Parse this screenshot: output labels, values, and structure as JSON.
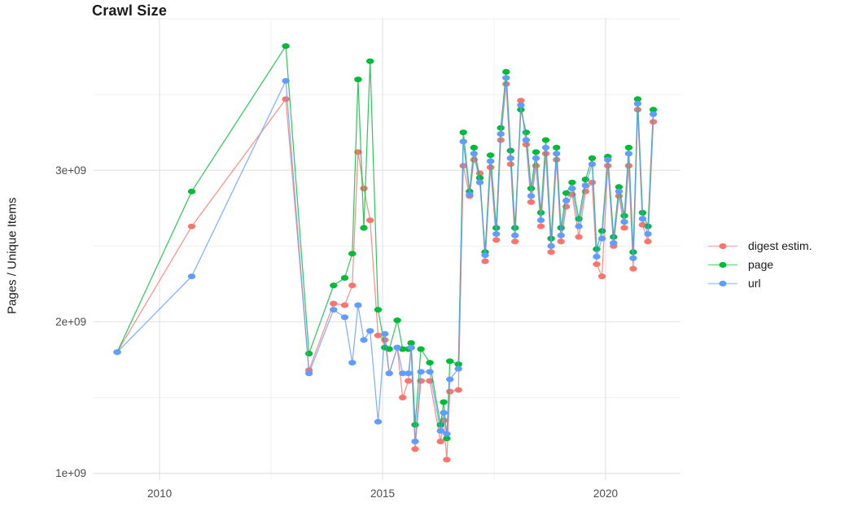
{
  "chart_data": {
    "type": "line",
    "title": "Crawl Size",
    "xlabel": "",
    "ylabel": "Pages / Unique Items",
    "grid": "on",
    "legend_position": "right",
    "y_values_unit": "1e9 (billions of pages / unique items)",
    "xlim": [
      2008.52,
      2021.68
    ],
    "ylim": [
      0.955,
      4.006
    ],
    "x_ticks": {
      "values": [
        2010,
        2015,
        2020
      ],
      "labels": [
        "2010",
        "2015",
        "2020"
      ]
    },
    "x_minor": [
      2012.5,
      2017.5
    ],
    "y_ticks": {
      "values": [
        1,
        2,
        3
      ],
      "labels": [
        "1e+09",
        "2e+09",
        "3e+09"
      ]
    },
    "y_minor": [
      1.5,
      2.5,
      3.5,
      4.0
    ],
    "x": [
      2009.05,
      2010.72,
      2012.83,
      2013.35,
      2013.9,
      2014.15,
      2014.32,
      2014.45,
      2014.58,
      2014.72,
      2014.9,
      2015.05,
      2015.15,
      2015.33,
      2015.45,
      2015.58,
      2015.64,
      2015.73,
      2015.86,
      2016.06,
      2016.3,
      2016.37,
      2016.44,
      2016.51,
      2016.7,
      2016.81,
      2016.95,
      2017.05,
      2017.18,
      2017.3,
      2017.42,
      2017.55,
      2017.65,
      2017.77,
      2017.87,
      2017.97,
      2018.1,
      2018.22,
      2018.33,
      2018.44,
      2018.55,
      2018.66,
      2018.78,
      2018.9,
      2019.0,
      2019.12,
      2019.25,
      2019.4,
      2019.55,
      2019.7,
      2019.8,
      2019.92,
      2020.05,
      2020.18,
      2020.3,
      2020.42,
      2020.52,
      2020.62,
      2020.72,
      2020.83,
      2020.95,
      2021.07
    ],
    "series": [
      {
        "name": "digest estim.",
        "color": "#F8766D",
        "values": [
          1.8,
          2.63,
          3.47,
          1.68,
          2.12,
          2.11,
          2.24,
          3.12,
          2.88,
          2.67,
          1.91,
          1.88,
          1.66,
          1.83,
          1.5,
          1.61,
          1.83,
          1.16,
          1.61,
          1.61,
          1.21,
          1.35,
          1.09,
          1.54,
          1.55,
          3.03,
          2.83,
          3.07,
          2.98,
          2.4,
          3.02,
          2.54,
          3.2,
          3.57,
          3.04,
          2.53,
          3.46,
          3.17,
          2.79,
          3.03,
          2.63,
          3.11,
          2.46,
          3.07,
          2.53,
          2.76,
          2.84,
          2.56,
          2.86,
          2.92,
          2.38,
          2.3,
          3.03,
          2.5,
          2.83,
          2.62,
          3.03,
          2.35,
          3.4,
          2.64,
          2.53,
          3.32
        ]
      },
      {
        "name": "page",
        "color": "#00BA38",
        "values": [
          1.8,
          2.86,
          3.82,
          1.79,
          2.24,
          2.29,
          2.45,
          3.6,
          2.62,
          3.72,
          2.08,
          1.83,
          1.82,
          2.01,
          1.82,
          1.82,
          1.86,
          1.32,
          1.82,
          1.73,
          1.32,
          1.47,
          1.23,
          1.74,
          1.72,
          3.25,
          2.86,
          3.15,
          2.95,
          2.46,
          3.1,
          2.62,
          3.28,
          3.65,
          3.13,
          2.62,
          3.4,
          3.25,
          2.88,
          3.12,
          2.72,
          3.2,
          2.55,
          3.15,
          2.62,
          2.85,
          2.92,
          2.68,
          2.94,
          3.08,
          2.48,
          2.6,
          3.09,
          2.56,
          2.89,
          2.7,
          3.15,
          2.46,
          3.47,
          2.72,
          2.63,
          3.4
        ]
      },
      {
        "name": "url",
        "color": "#619CFF",
        "values": [
          1.8,
          2.3,
          3.59,
          1.66,
          2.08,
          2.03,
          1.73,
          2.11,
          1.88,
          1.94,
          1.34,
          1.92,
          1.66,
          1.83,
          1.66,
          1.66,
          1.83,
          1.21,
          1.67,
          1.67,
          1.28,
          1.4,
          1.26,
          1.62,
          1.69,
          3.19,
          2.84,
          3.11,
          2.92,
          2.44,
          3.06,
          2.58,
          3.24,
          3.61,
          3.08,
          2.57,
          3.43,
          3.2,
          2.83,
          3.08,
          2.67,
          3.15,
          2.5,
          3.11,
          2.57,
          2.8,
          2.88,
          2.63,
          2.9,
          3.04,
          2.43,
          2.55,
          3.07,
          2.52,
          2.86,
          2.66,
          3.11,
          2.42,
          3.44,
          2.68,
          2.58,
          3.37
        ]
      }
    ],
    "style": {
      "grid_major_color": "#e4e4e4",
      "grid_minor_color": "#efefef",
      "background": "#ffffff",
      "tick_label_color": "#4d4d4d",
      "text_color": "#1a1a1a"
    }
  }
}
